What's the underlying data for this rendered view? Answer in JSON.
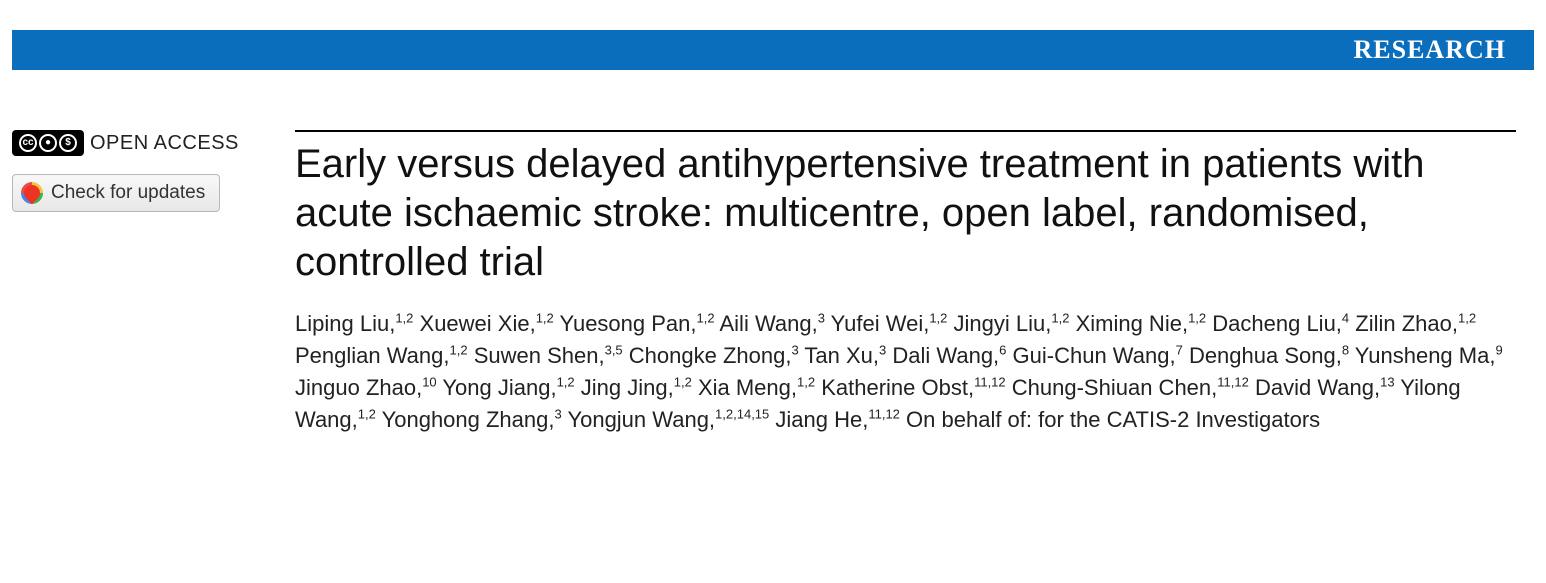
{
  "banner": {
    "label": "RESEARCH",
    "background_color": "#0a6ebd",
    "text_color": "#ffffff"
  },
  "sidebar": {
    "open_access_label": "OPEN ACCESS",
    "cc_icons": [
      "cc",
      "by",
      "nc"
    ],
    "check_updates_label": "Check for updates"
  },
  "article": {
    "title": "Early versus delayed antihypertensive treatment in patients with acute ischaemic stroke: multicentre, open label, randomised, controlled trial",
    "authors": [
      {
        "name": "Liping Liu",
        "affil": "1,2"
      },
      {
        "name": "Xuewei Xie",
        "affil": "1,2"
      },
      {
        "name": "Yuesong Pan",
        "affil": "1,2"
      },
      {
        "name": "Aili Wang",
        "affil": "3"
      },
      {
        "name": "Yufei Wei",
        "affil": "1,2"
      },
      {
        "name": "Jingyi Liu",
        "affil": "1,2"
      },
      {
        "name": "Ximing Nie",
        "affil": "1,2"
      },
      {
        "name": "Dacheng Liu",
        "affil": "4"
      },
      {
        "name": "Zilin Zhao",
        "affil": "1,2"
      },
      {
        "name": "Penglian Wang",
        "affil": "1,2"
      },
      {
        "name": "Suwen Shen",
        "affil": "3,5"
      },
      {
        "name": "Chongke Zhong",
        "affil": "3"
      },
      {
        "name": "Tan Xu",
        "affil": "3"
      },
      {
        "name": "Dali Wang",
        "affil": "6"
      },
      {
        "name": "Gui-Chun Wang",
        "affil": "7"
      },
      {
        "name": "Denghua Song",
        "affil": "8"
      },
      {
        "name": "Yunsheng Ma",
        "affil": "9"
      },
      {
        "name": "Jinguo Zhao",
        "affil": "10"
      },
      {
        "name": "Yong Jiang",
        "affil": "1,2"
      },
      {
        "name": "Jing Jing",
        "affil": "1,2"
      },
      {
        "name": "Xia Meng",
        "affil": "1,2"
      },
      {
        "name": "Katherine Obst",
        "affil": "11,12"
      },
      {
        "name": "Chung-Shiuan Chen",
        "affil": "11,12"
      },
      {
        "name": "David Wang",
        "affil": "13"
      },
      {
        "name": "Yilong Wang",
        "affil": "1,2"
      },
      {
        "name": "Yonghong Zhang",
        "affil": "3"
      },
      {
        "name": "Yongjun Wang",
        "affil": "1,2,14,15"
      },
      {
        "name": "Jiang He",
        "affil": "11,12"
      }
    ],
    "on_behalf": "On behalf of: for the CATIS-2 Investigators"
  },
  "style": {
    "body_width": 1546,
    "title_fontsize": 40,
    "author_fontsize": 22,
    "banner_fontsize": 26,
    "text_color": "#111111",
    "rule_color": "#000000"
  }
}
